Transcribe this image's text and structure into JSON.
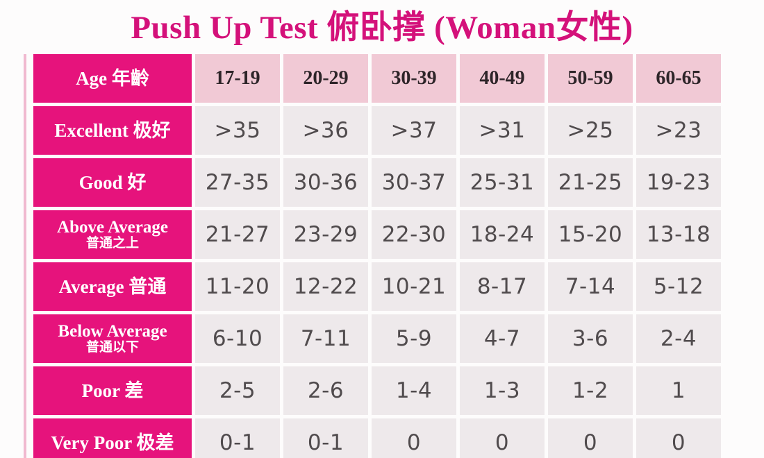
{
  "title": "Push Up Test 俯卧撑 (Woman女性)",
  "colors": {
    "label_magenta": "#e6137c",
    "title_magenta": "#d4117a",
    "age_header_pink": "#f1c9d5",
    "value_cell_offwhite": "#eee9eb",
    "label_text": "#ffffff",
    "age_text": "#2e2529",
    "value_text": "#504b4d"
  },
  "chart_data": {
    "type": "table",
    "title": "Push Up Test 俯卧撑 (Woman女性)",
    "header": {
      "en": "Age",
      "zh": "年齡"
    },
    "age_groups": [
      "17-19",
      "20-29",
      "30-39",
      "40-49",
      "50-59",
      "60-65"
    ],
    "rows": [
      {
        "en": "Excellent",
        "zh": "极好",
        "two_line": false,
        "values": [
          ">35",
          ">36",
          ">37",
          ">31",
          ">25",
          ">23"
        ]
      },
      {
        "en": "Good",
        "zh": "好",
        "two_line": false,
        "values": [
          "27-35",
          "30-36",
          "30-37",
          "25-31",
          "21-25",
          "19-23"
        ]
      },
      {
        "en": "Above Average",
        "zh": "普通之上",
        "two_line": true,
        "values": [
          "21-27",
          "23-29",
          "22-30",
          "18-24",
          "15-20",
          "13-18"
        ]
      },
      {
        "en": "Average",
        "zh": "普通",
        "two_line": false,
        "values": [
          "11-20",
          "12-22",
          "10-21",
          "8-17",
          "7-14",
          "5-12"
        ]
      },
      {
        "en": "Below Average",
        "zh": "普通以下",
        "two_line": true,
        "values": [
          "6-10",
          "7-11",
          "5-9",
          "4-7",
          "3-6",
          "2-4"
        ]
      },
      {
        "en": "Poor",
        "zh": "差",
        "two_line": false,
        "values": [
          "2-5",
          "2-6",
          "1-4",
          "1-3",
          "1-2",
          "1"
        ]
      },
      {
        "en": "Very Poor",
        "zh": "极差",
        "two_line": false,
        "values": [
          "0-1",
          "0-1",
          "0",
          "0",
          "0",
          "0"
        ]
      }
    ]
  }
}
